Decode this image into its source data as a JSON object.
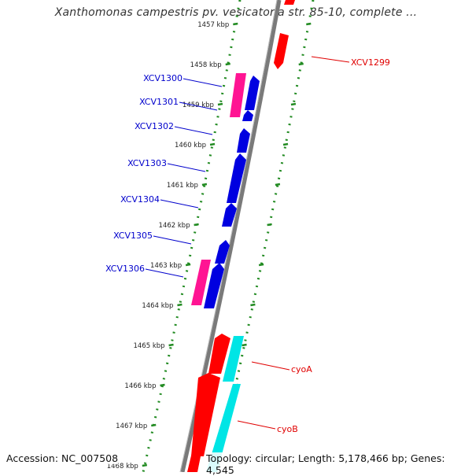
{
  "title": "Xanthomonas campestris pv. vesicatoria str. 85-10, complete ...",
  "footer": {
    "accession": "Accession: NC_007508",
    "topology": "Topology: circular; Length: 5,178,466 bp; Genes: 4,545"
  },
  "ticks": [
    "1457 kbp",
    "1458 kbp",
    "1459 kbp",
    "1460 kbp",
    "1461 kbp",
    "1462 kbp",
    "1463 kbp",
    "1464 kbp",
    "1465 kbp",
    "1466 kbp",
    "1467 kbp",
    "1468 kbp"
  ],
  "gene_labels": [
    {
      "name": "XCV1299",
      "color": "#e00000"
    },
    {
      "name": "XCV1300",
      "color": "#0000cc"
    },
    {
      "name": "XCV1301",
      "color": "#0000cc"
    },
    {
      "name": "XCV1302",
      "color": "#0000cc"
    },
    {
      "name": "XCV1303",
      "color": "#0000cc"
    },
    {
      "name": "XCV1304",
      "color": "#0000cc"
    },
    {
      "name": "XCV1305",
      "color": "#0000cc"
    },
    {
      "name": "XCV1306",
      "color": "#0000cc"
    },
    {
      "name": "cyoA",
      "color": "#e00000"
    },
    {
      "name": "cyoB",
      "color": "#e00000"
    }
  ],
  "colors": {
    "backbone": "#8a8a8a",
    "tick_green": "#228b22",
    "forward_red": "#ff0000",
    "reverse_blue": "#0000e0",
    "magenta": "#ff1493",
    "cyan": "#00e5e5"
  }
}
